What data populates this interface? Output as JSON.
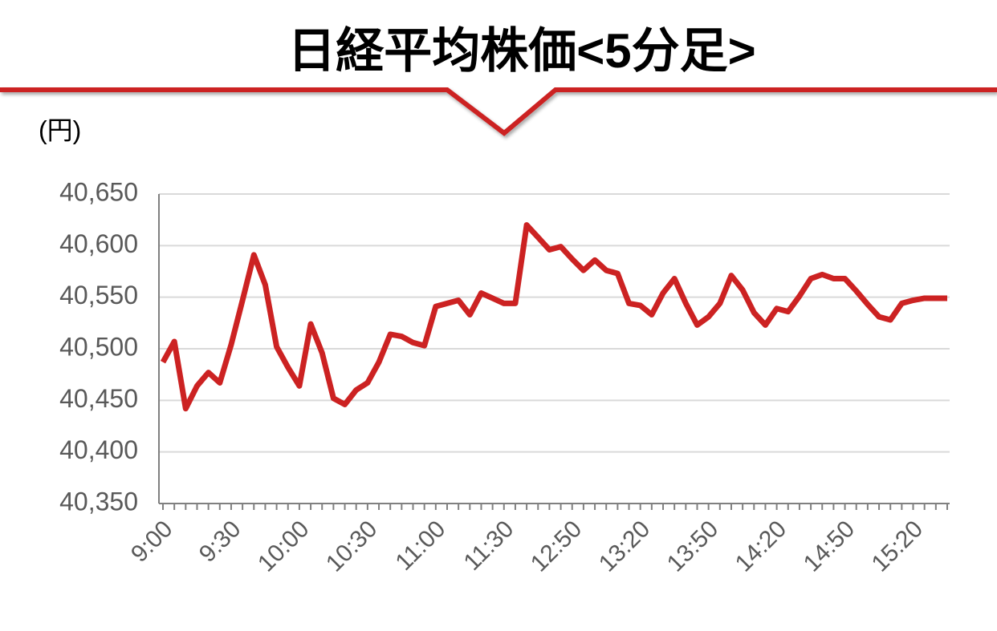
{
  "chart_data": {
    "type": "line",
    "title": "日経平均株価<5分足>",
    "y_label": "(円)",
    "categories": [
      "9:00",
      null,
      null,
      null,
      null,
      null,
      "9:30",
      null,
      null,
      null,
      null,
      null,
      "10:00",
      null,
      null,
      null,
      null,
      null,
      "10:30",
      null,
      null,
      null,
      null,
      null,
      "11:00",
      null,
      null,
      null,
      null,
      null,
      "11:30",
      null,
      null,
      null,
      null,
      null,
      "12:50",
      null,
      null,
      null,
      null,
      null,
      "13:20",
      null,
      null,
      null,
      null,
      null,
      "13:50",
      null,
      null,
      null,
      null,
      null,
      "14:20",
      null,
      null,
      null,
      null,
      null,
      "14:50",
      null,
      null,
      null,
      null,
      null,
      "15:20",
      null,
      null,
      null
    ],
    "series": [
      {
        "color": "#cc2222",
        "values": [
          40487,
          40507,
          40442,
          40464,
          40477,
          40467,
          40504,
          40547,
          40591,
          40562,
          40502,
          40482,
          40464,
          40524,
          40496,
          40452,
          40446,
          40460,
          40467,
          40487,
          40514,
          40512,
          40506,
          40503,
          40541,
          40544,
          40547,
          40533,
          40554,
          40549,
          40544,
          40544,
          40620,
          40608,
          40596,
          40599,
          40587,
          40576,
          40586,
          40576,
          40573,
          40544,
          40542,
          40533,
          40554,
          40568,
          40544,
          40523,
          40531,
          40544,
          40571,
          40557,
          40535,
          40523,
          40539,
          40536,
          40551,
          40568,
          40572,
          40568,
          40568,
          40556,
          40543,
          40531,
          40528,
          40544,
          40547,
          40549,
          40549,
          40549
        ]
      }
    ],
    "ylim": [
      40350,
      40650
    ],
    "yticks": [
      {
        "value": 40350,
        "label": "40,350"
      },
      {
        "value": 40400,
        "label": "40,400"
      },
      {
        "value": 40450,
        "label": "40,450"
      },
      {
        "value": 40500,
        "label": "40,500"
      },
      {
        "value": 40550,
        "label": "40,550"
      },
      {
        "value": 40600,
        "label": "40,600"
      },
      {
        "value": 40650,
        "label": "40,650"
      }
    ],
    "grid": true
  }
}
